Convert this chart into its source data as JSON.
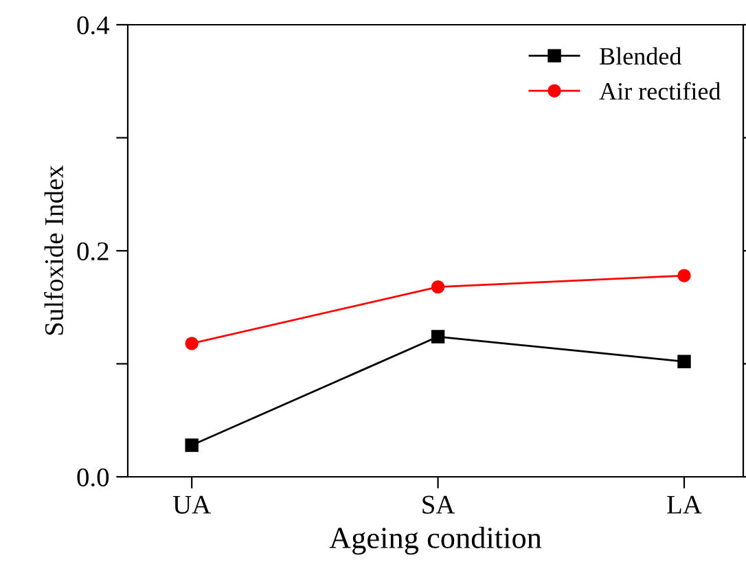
{
  "chart_data": {
    "type": "line",
    "xlabel": "Ageing condition",
    "ylabel": "Sulfoxide Index",
    "categories": [
      "UA",
      "SA",
      "LA"
    ],
    "series": [
      {
        "name": "Blended",
        "color": "#000000",
        "values": [
          0.028,
          0.124,
          0.102
        ],
        "marker": "square"
      },
      {
        "name": "Air rectified",
        "color": "#ff0000",
        "values": [
          0.118,
          0.168,
          0.178
        ],
        "marker": "circle"
      }
    ],
    "ylim": [
      0.0,
      0.4
    ],
    "yticks": [
      "0.0",
      {
        "value": 0.1,
        "label": null
      },
      0.2,
      {
        "value": 0.3,
        "label": null
      },
      0.4
    ],
    "grid": false,
    "legend": "top right",
    "line_style": "solid"
  }
}
